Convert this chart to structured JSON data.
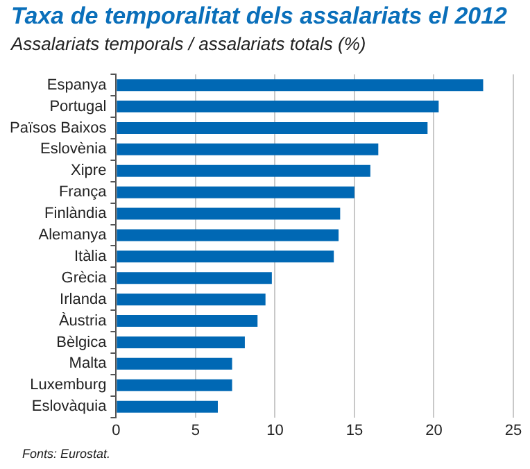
{
  "chart_data": {
    "type": "bar",
    "orientation": "horizontal",
    "title": "Taxa de temporalitat dels assalariats el 2012",
    "subtitle": "Assalariats temporals / assalariats totals (%)",
    "categories": [
      "Espanya",
      "Portugal",
      "Països Baixos",
      "Eslovènia",
      "Xipre",
      "França",
      "Finlàndia",
      "Alemanya",
      "Itàlia",
      "Grècia",
      "Irlanda",
      "Àustria",
      "Bèlgica",
      "Malta",
      "Luxemburg",
      "Eslovàquia"
    ],
    "values": [
      23.1,
      20.3,
      19.6,
      16.5,
      16.0,
      15.0,
      14.1,
      14.0,
      13.7,
      9.8,
      9.4,
      8.9,
      8.1,
      7.3,
      7.3,
      6.4
    ],
    "color": "#0068b4",
    "xlim": [
      0,
      25
    ],
    "xticks": [
      0,
      5,
      10,
      15,
      20,
      25
    ],
    "grid": "x",
    "annotations": [
      "Fonts: Eurostat."
    ]
  }
}
